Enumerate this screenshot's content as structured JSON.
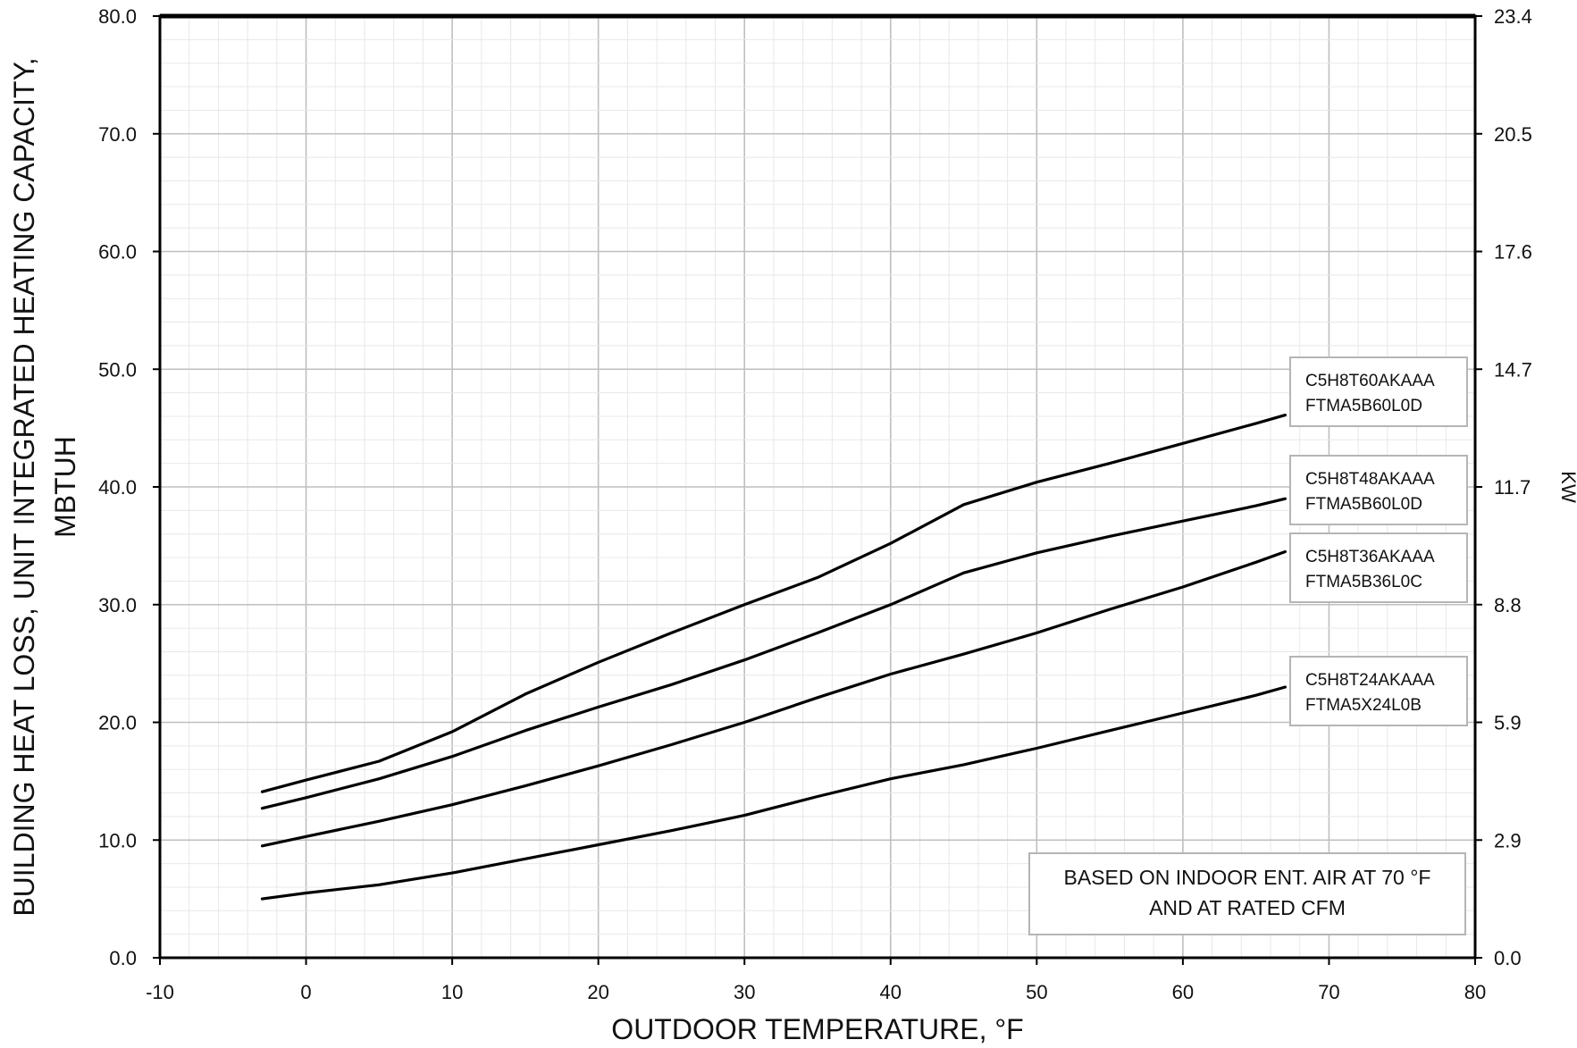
{
  "chart_data": {
    "type": "line",
    "xlabel": "OUTDOOR TEMPERATURE, °F",
    "ylabel_lines": [
      "BUILDING  HEAT LOSS, UNIT INTEGRATED HEATING CAPACITY,",
      "MBTUH"
    ],
    "y2label": "KW",
    "xlim": [
      -10,
      80
    ],
    "ylim": [
      0,
      80
    ],
    "x_ticks": [
      "-10",
      "0",
      "10",
      "20",
      "30",
      "40",
      "50",
      "60",
      "70",
      "80"
    ],
    "y_ticks": [
      "0.0",
      "10.0",
      "20.0",
      "30.0",
      "40.0",
      "50.0",
      "60.0",
      "70.0",
      "80.0"
    ],
    "y2_ticks": [
      "0.0",
      "2.9",
      "5.9",
      "8.8",
      "11.7",
      "14.7",
      "17.6",
      "20.5",
      "23.4"
    ],
    "grid": true,
    "note": [
      "BASED ON INDOOR ENT. AIR AT 70 °F",
      "AND AT RATED CFM"
    ],
    "series": [
      {
        "name": "C5H8T60AKAAA FTMA5B60L0D",
        "label_lines": [
          "C5H8T60AKAAA",
          "FTMA5B60L0D"
        ],
        "x": [
          -3,
          0,
          5,
          10,
          15,
          20,
          25,
          30,
          35,
          40,
          45,
          50,
          55,
          60,
          65,
          67
        ],
        "y": [
          14.1,
          15.1,
          16.7,
          19.2,
          22.4,
          25.1,
          27.6,
          30.0,
          32.3,
          35.2,
          38.5,
          40.4,
          42.0,
          43.7,
          45.4,
          46.1
        ]
      },
      {
        "name": "C5H8T48AKAAA FTMA5B60L0D",
        "label_lines": [
          "C5H8T48AKAAA",
          "FTMA5B60L0D"
        ],
        "x": [
          -3,
          0,
          5,
          10,
          15,
          20,
          25,
          30,
          35,
          40,
          45,
          50,
          55,
          60,
          65,
          67
        ],
        "y": [
          12.7,
          13.6,
          15.2,
          17.1,
          19.3,
          21.3,
          23.2,
          25.3,
          27.6,
          30.0,
          32.7,
          34.4,
          35.8,
          37.1,
          38.4,
          39.0
        ]
      },
      {
        "name": "C5H8T36AKAAA FTMA5B36L0C",
        "label_lines": [
          "C5H8T36AKAAA",
          "FTMA5B36L0C"
        ],
        "x": [
          -3,
          0,
          5,
          10,
          15,
          20,
          25,
          30,
          35,
          40,
          45,
          50,
          55,
          60,
          65,
          67
        ],
        "y": [
          9.5,
          10.3,
          11.6,
          13.0,
          14.6,
          16.3,
          18.1,
          20.0,
          22.1,
          24.1,
          25.8,
          27.6,
          29.6,
          31.5,
          33.6,
          34.5
        ]
      },
      {
        "name": "C5H8T24AKAAA FTMA5X24L0B",
        "label_lines": [
          "C5H8T24AKAAA",
          "FTMA5X24L0B"
        ],
        "x": [
          -3,
          0,
          5,
          10,
          15,
          20,
          25,
          30,
          35,
          40,
          45,
          50,
          55,
          60,
          65,
          67
        ],
        "y": [
          5.0,
          5.5,
          6.2,
          7.2,
          8.4,
          9.6,
          10.8,
          12.1,
          13.7,
          15.2,
          16.4,
          17.8,
          19.3,
          20.8,
          22.3,
          23.0
        ]
      }
    ]
  }
}
